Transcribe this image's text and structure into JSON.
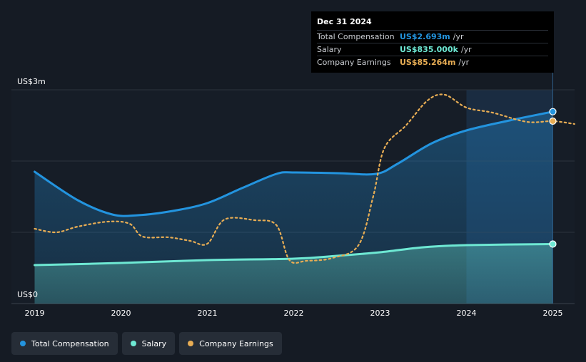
{
  "chart_data": {
    "type": "line",
    "ylim": [
      0,
      3
    ],
    "xlim": [
      2019,
      2025.25
    ],
    "y_ticks": [
      {
        "value": 3,
        "label": "US$3m"
      },
      {
        "value": 0,
        "label": "US$0"
      }
    ],
    "x_ticks": [
      "2019",
      "2020",
      "2021",
      "2022",
      "2023",
      "2024",
      "2025"
    ],
    "series": [
      {
        "name": "Total Compensation",
        "color": "#2394df",
        "points": [
          [
            2019.0,
            1.85
          ],
          [
            2019.5,
            1.45
          ],
          [
            2019.9,
            1.25
          ],
          [
            2020.2,
            1.24
          ],
          [
            2020.6,
            1.3
          ],
          [
            2021.0,
            1.41
          ],
          [
            2021.4,
            1.62
          ],
          [
            2021.8,
            1.82
          ],
          [
            2022.0,
            1.84
          ],
          [
            2022.5,
            1.83
          ],
          [
            2022.95,
            1.82
          ],
          [
            2023.2,
            1.96
          ],
          [
            2023.6,
            2.25
          ],
          [
            2024.0,
            2.43
          ],
          [
            2024.5,
            2.57
          ],
          [
            2025.0,
            2.693
          ]
        ]
      },
      {
        "name": "Salary",
        "color": "#6ee8d3",
        "points": [
          [
            2019.0,
            0.54
          ],
          [
            2020.0,
            0.57
          ],
          [
            2021.0,
            0.61
          ],
          [
            2022.0,
            0.63
          ],
          [
            2022.5,
            0.67
          ],
          [
            2023.0,
            0.72
          ],
          [
            2023.5,
            0.79
          ],
          [
            2024.0,
            0.82
          ],
          [
            2025.0,
            0.835
          ]
        ]
      },
      {
        "name": "Company Earnings",
        "color": "#e8ad54",
        "points": [
          [
            2019.0,
            1.05
          ],
          [
            2019.25,
            1.0
          ],
          [
            2019.5,
            1.08
          ],
          [
            2019.85,
            1.15
          ],
          [
            2020.1,
            1.12
          ],
          [
            2020.25,
            0.94
          ],
          [
            2020.55,
            0.93
          ],
          [
            2020.8,
            0.88
          ],
          [
            2021.0,
            0.84
          ],
          [
            2021.2,
            1.18
          ],
          [
            2021.55,
            1.17
          ],
          [
            2021.8,
            1.1
          ],
          [
            2021.95,
            0.61
          ],
          [
            2022.15,
            0.6
          ],
          [
            2022.45,
            0.64
          ],
          [
            2022.75,
            0.82
          ],
          [
            2022.92,
            1.5
          ],
          [
            2023.05,
            2.18
          ],
          [
            2023.3,
            2.5
          ],
          [
            2023.55,
            2.85
          ],
          [
            2023.75,
            2.93
          ],
          [
            2024.0,
            2.75
          ],
          [
            2024.3,
            2.68
          ],
          [
            2024.7,
            2.55
          ],
          [
            2025.0,
            2.56
          ],
          [
            2025.25,
            2.52
          ]
        ]
      }
    ],
    "shaded_from": 2024,
    "shaded_to": 2025,
    "tooltip": {
      "date": "Dec 31 2024",
      "rows": [
        {
          "label": "Total Compensation",
          "value": "US$2.693m",
          "unit": "/yr",
          "color": "#2394df"
        },
        {
          "label": "Salary",
          "value": "US$835.000k",
          "unit": "/yr",
          "color": "#6ee8d3"
        },
        {
          "label": "Company Earnings",
          "value": "US$85.264m",
          "unit": "/yr",
          "color": "#e8ad54"
        }
      ]
    }
  },
  "legend": [
    {
      "label": "Total Compensation",
      "color": "#2394df"
    },
    {
      "label": "Salary",
      "color": "#6ee8d3"
    },
    {
      "label": "Company Earnings",
      "color": "#e8ad54"
    }
  ]
}
